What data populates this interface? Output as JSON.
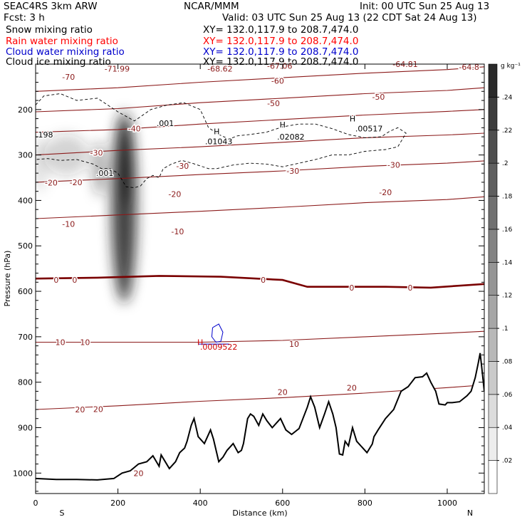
{
  "header": {
    "model": "SEAC4RS  3km ARW",
    "fcst": "Fcst:    3 h",
    "center": "NCAR/MMM",
    "init": "Init: 00 UTC Sun 25 Aug 13",
    "valid": "Valid: 03 UTC Sun 25 Aug 13 (22 CDT Sat 24 Aug 13)",
    "fields": [
      {
        "name": "Snow mixing ratio",
        "xy": "XY= 132.0,117.9 to 208.7,474.0",
        "color": "#000000"
      },
      {
        "name": "Rain water mixing ratio",
        "xy": "XY= 132.0,117.9 to 208.7,474.0",
        "color": "#ff0000"
      },
      {
        "name": "Cloud water mixing ratio",
        "xy": "XY= 132.0,117.9 to 208.7,474.0",
        "color": "#0000cc"
      },
      {
        "name": "Cloud ice mixing ratio",
        "xy": "XY= 132.0,117.9 to 208.7,474.0",
        "color": "#000000"
      }
    ]
  },
  "colors": {
    "isotherm": "#8b1a1a",
    "freezing_level": "#7a0000",
    "terrain": "#000000",
    "cloud_water": "#0000cc",
    "rain": "#cc0000"
  },
  "chart_data": {
    "type": "cross-section",
    "xlabel": "Distance (km)",
    "ylabel": "Pressure (hPa)",
    "xlim": [
      0,
      1090
    ],
    "ylim": [
      1045,
      100
    ],
    "xticks": [
      0,
      200,
      400,
      600,
      800,
      1000
    ],
    "yticks": [
      200,
      300,
      400,
      500,
      600,
      700,
      800,
      900,
      1000
    ],
    "endpoint_labels": {
      "left": "S",
      "right": "N"
    },
    "colorbar": {
      "unit": "g kg⁻¹",
      "ticks": [
        ".02",
        ".04",
        ".06",
        ".08",
        ".1",
        ".12",
        ".14",
        ".16",
        ".18",
        ".2",
        ".22",
        ".24"
      ],
      "levels": 13
    },
    "isotherms": [
      {
        "temp": -60,
        "points": [
          [
            0,
            160
          ],
          [
            200,
            152
          ],
          [
            400,
            140
          ],
          [
            600,
            130
          ],
          [
            800,
            120
          ],
          [
            1000,
            112
          ],
          [
            1090,
            106
          ]
        ]
      },
      {
        "temp": -50,
        "points": [
          [
            0,
            205
          ],
          [
            200,
            198
          ],
          [
            400,
            185
          ],
          [
            600,
            175
          ],
          [
            800,
            165
          ],
          [
            1000,
            158
          ],
          [
            1090,
            152
          ]
        ]
      },
      {
        "temp": -40,
        "points": [
          [
            0,
            250
          ],
          [
            200,
            244
          ],
          [
            400,
            232
          ],
          [
            600,
            222
          ],
          [
            800,
            212
          ],
          [
            1000,
            204
          ],
          [
            1090,
            200
          ]
        ]
      },
      {
        "temp": -30,
        "points": [
          [
            0,
            300
          ],
          [
            200,
            290
          ],
          [
            400,
            282
          ],
          [
            600,
            272
          ],
          [
            800,
            262
          ],
          [
            1000,
            256
          ],
          [
            1090,
            252
          ]
        ]
      },
      {
        "temp": -20,
        "points": [
          [
            0,
            360
          ],
          [
            200,
            352
          ],
          [
            400,
            343
          ],
          [
            600,
            335
          ],
          [
            800,
            325
          ],
          [
            1000,
            318
          ],
          [
            1090,
            313
          ]
        ]
      },
      {
        "temp": -10,
        "points": [
          [
            0,
            440
          ],
          [
            200,
            432
          ],
          [
            400,
            424
          ],
          [
            600,
            415
          ],
          [
            800,
            405
          ],
          [
            1000,
            398
          ],
          [
            1090,
            392
          ]
        ]
      },
      {
        "temp": 0,
        "points": [
          [
            0,
            572
          ],
          [
            150,
            570
          ],
          [
            300,
            566
          ],
          [
            450,
            568
          ],
          [
            600,
            575
          ],
          [
            660,
            590
          ],
          [
            750,
            590
          ],
          [
            850,
            590
          ],
          [
            960,
            592
          ],
          [
            1090,
            584
          ]
        ]
      },
      {
        "temp": 10,
        "points": [
          [
            0,
            712
          ],
          [
            200,
            712
          ],
          [
            400,
            712
          ],
          [
            600,
            708
          ],
          [
            800,
            700
          ],
          [
            1000,
            692
          ],
          [
            1090,
            688
          ]
        ]
      },
      {
        "temp": 20,
        "points": [
          [
            0,
            860
          ],
          [
            200,
            852
          ],
          [
            400,
            842
          ],
          [
            600,
            834
          ],
          [
            800,
            824
          ],
          [
            1000,
            812
          ],
          [
            1090,
            806
          ]
        ]
      }
    ],
    "isotherm_labels": [
      {
        "text": "-70",
        "x": 80,
        "y": 128
      },
      {
        "text": "-71.99",
        "x": 198,
        "y": 110
      },
      {
        "text": "-68.62",
        "x": 448,
        "y": 110
      },
      {
        "text": "-67.06",
        "x": 593,
        "y": 104
      },
      {
        "text": "-64.81",
        "x": 898,
        "y": 100
      },
      {
        "text": "-64.8",
        "x": 1053,
        "y": 106
      },
      {
        "text": "-60",
        "x": 588,
        "y": 137
      },
      {
        "text": "-50",
        "x": 578,
        "y": 186
      },
      {
        "text": "-50",
        "x": 833,
        "y": 172
      },
      {
        "text": "-40",
        "x": 240,
        "y": 242
      },
      {
        "text": "-30",
        "x": 148,
        "y": 295
      },
      {
        "text": "-30",
        "x": 357,
        "y": 324
      },
      {
        "text": "-30",
        "x": 625,
        "y": 335
      },
      {
        "text": "-30",
        "x": 870,
        "y": 322
      },
      {
        "text": "-20",
        "x": 38,
        "y": 361
      },
      {
        "text": "-20",
        "x": 98,
        "y": 360
      },
      {
        "text": "-20",
        "x": 338,
        "y": 386
      },
      {
        "text": "-20",
        "x": 850,
        "y": 382
      },
      {
        "text": "-10",
        "x": 80,
        "y": 452
      },
      {
        "text": "-10",
        "x": 345,
        "y": 468
      },
      {
        "text": "0",
        "x": 50,
        "y": 575
      },
      {
        "text": "0",
        "x": 95,
        "y": 575
      },
      {
        "text": "0",
        "x": 553,
        "y": 575
      },
      {
        "text": "0",
        "x": 768,
        "y": 592
      },
      {
        "text": "0",
        "x": 910,
        "y": 592
      },
      {
        "text": "10",
        "x": 60,
        "y": 712
      },
      {
        "text": "10",
        "x": 120,
        "y": 712
      },
      {
        "text": "10",
        "x": 628,
        "y": 716
      },
      {
        "text": "20",
        "x": 108,
        "y": 860
      },
      {
        "text": "20",
        "x": 152,
        "y": 859
      },
      {
        "text": "20",
        "x": 600,
        "y": 822
      },
      {
        "text": "20",
        "x": 768,
        "y": 812
      },
      {
        "text": "20",
        "x": 250,
        "y": 1000
      }
    ],
    "cloud_ice_maxima": [
      {
        "text": ".001",
        "x": 315,
        "y": 230
      },
      {
        "text": ".001",
        "x": 168,
        "y": 340
      },
      {
        "text": ".01043",
        "x": 445,
        "y": 270
      },
      {
        "text": ".02082",
        "x": 620,
        "y": 260
      },
      {
        "text": ".00517",
        "x": 810,
        "y": 242
      },
      {
        "text": "H",
        "x": 440,
        "y": 248,
        "mark": true
      },
      {
        "text": "H",
        "x": 600,
        "y": 233,
        "mark": true
      },
      {
        "text": "H",
        "x": 770,
        "y": 220,
        "mark": true
      },
      {
        "text": ".198",
        "x": 0,
        "y": 255
      }
    ],
    "cloud_ice_contour": [
      [
        0,
        190
      ],
      [
        20,
        170
      ],
      [
        60,
        165
      ],
      [
        100,
        180
      ],
      [
        150,
        175
      ],
      [
        200,
        205
      ],
      [
        240,
        225
      ],
      [
        280,
        200
      ],
      [
        320,
        190
      ],
      [
        360,
        185
      ],
      [
        400,
        200
      ],
      [
        420,
        240
      ],
      [
        445,
        255
      ],
      [
        470,
        265
      ],
      [
        490,
        258
      ],
      [
        520,
        255
      ],
      [
        560,
        250
      ],
      [
        600,
        238
      ],
      [
        640,
        232
      ],
      [
        680,
        232
      ],
      [
        720,
        242
      ],
      [
        760,
        255
      ],
      [
        800,
        262
      ],
      [
        840,
        260
      ],
      [
        860,
        248
      ],
      [
        880,
        240
      ],
      [
        900,
        252
      ],
      [
        880,
        282
      ],
      [
        850,
        288
      ],
      [
        800,
        292
      ],
      [
        760,
        300
      ],
      [
        720,
        300
      ],
      [
        680,
        310
      ],
      [
        640,
        318
      ],
      [
        600,
        326
      ],
      [
        560,
        320
      ],
      [
        520,
        318
      ],
      [
        480,
        322
      ],
      [
        440,
        330
      ],
      [
        420,
        330
      ],
      [
        380,
        318
      ],
      [
        355,
        312
      ],
      [
        330,
        320
      ],
      [
        310,
        330
      ],
      [
        300,
        350
      ],
      [
        285,
        345
      ],
      [
        270,
        352
      ],
      [
        255,
        368
      ],
      [
        240,
        372
      ],
      [
        220,
        370
      ],
      [
        200,
        340
      ],
      [
        180,
        330
      ],
      [
        160,
        330
      ],
      [
        140,
        320
      ],
      [
        100,
        310
      ],
      [
        60,
        312
      ],
      [
        30,
        308
      ],
      [
        0,
        310
      ]
    ],
    "cloud_water_maxima": [
      {
        "text": "H",
        "x": 400,
        "y": 712,
        "color": "rain"
      },
      {
        "text": ".0009522",
        "x": 445,
        "y": 722,
        "color": "rain"
      }
    ],
    "cloud_water_contour": [
      [
        430,
        680
      ],
      [
        445,
        672
      ],
      [
        455,
        690
      ],
      [
        450,
        710
      ],
      [
        438,
        712
      ],
      [
        428,
        700
      ],
      [
        430,
        680
      ]
    ],
    "snow_blobs": [
      {
        "x": 215,
        "y": 415,
        "rx": 30,
        "ry": 210,
        "opacity": 0.85
      },
      {
        "x": 222,
        "y": 320,
        "rx": 16,
        "ry": 90,
        "opacity": 0.95
      },
      {
        "x": 155,
        "y": 330,
        "rx": 12,
        "ry": 60,
        "opacity": 0.5
      },
      {
        "x": 75,
        "y": 300,
        "rx": 55,
        "ry": 45,
        "opacity": 0.2
      },
      {
        "x": 10,
        "y": 320,
        "rx": 20,
        "ry": 60,
        "opacity": 0.12
      }
    ],
    "terrain": [
      [
        0,
        1045
      ],
      [
        0,
        1012
      ],
      [
        50,
        1014
      ],
      [
        100,
        1014
      ],
      [
        150,
        1015
      ],
      [
        190,
        1012
      ],
      [
        210,
        1000
      ],
      [
        230,
        995
      ],
      [
        250,
        980
      ],
      [
        270,
        975
      ],
      [
        285,
        962
      ],
      [
        300,
        985
      ],
      [
        305,
        960
      ],
      [
        325,
        990
      ],
      [
        340,
        975
      ],
      [
        350,
        955
      ],
      [
        362,
        945
      ],
      [
        368,
        930
      ],
      [
        378,
        895
      ],
      [
        385,
        880
      ],
      [
        395,
        920
      ],
      [
        410,
        935
      ],
      [
        425,
        905
      ],
      [
        432,
        925
      ],
      [
        445,
        975
      ],
      [
        455,
        965
      ],
      [
        465,
        950
      ],
      [
        480,
        935
      ],
      [
        492,
        955
      ],
      [
        500,
        950
      ],
      [
        505,
        935
      ],
      [
        515,
        880
      ],
      [
        522,
        870
      ],
      [
        530,
        875
      ],
      [
        542,
        895
      ],
      [
        552,
        870
      ],
      [
        562,
        885
      ],
      [
        575,
        900
      ],
      [
        585,
        890
      ],
      [
        595,
        880
      ],
      [
        608,
        905
      ],
      [
        622,
        915
      ],
      [
        640,
        902
      ],
      [
        660,
        855
      ],
      [
        668,
        832
      ],
      [
        678,
        855
      ],
      [
        690,
        900
      ],
      [
        702,
        870
      ],
      [
        712,
        843
      ],
      [
        722,
        870
      ],
      [
        730,
        900
      ],
      [
        738,
        958
      ],
      [
        746,
        960
      ],
      [
        752,
        930
      ],
      [
        760,
        940
      ],
      [
        770,
        900
      ],
      [
        780,
        930
      ],
      [
        790,
        940
      ],
      [
        805,
        955
      ],
      [
        818,
        936
      ],
      [
        822,
        920
      ],
      [
        832,
        905
      ],
      [
        850,
        880
      ],
      [
        870,
        860
      ],
      [
        888,
        820
      ],
      [
        905,
        810
      ],
      [
        922,
        790
      ],
      [
        940,
        788
      ],
      [
        950,
        780
      ],
      [
        960,
        800
      ],
      [
        972,
        820
      ],
      [
        980,
        848
      ],
      [
        995,
        850
      ],
      [
        1000,
        845
      ],
      [
        1012,
        845
      ],
      [
        1030,
        843
      ],
      [
        1048,
        830
      ],
      [
        1058,
        820
      ],
      [
        1068,
        790
      ],
      [
        1075,
        760
      ],
      [
        1080,
        736
      ],
      [
        1084,
        768
      ],
      [
        1090,
        820
      ],
      [
        1090,
        1045
      ]
    ]
  }
}
